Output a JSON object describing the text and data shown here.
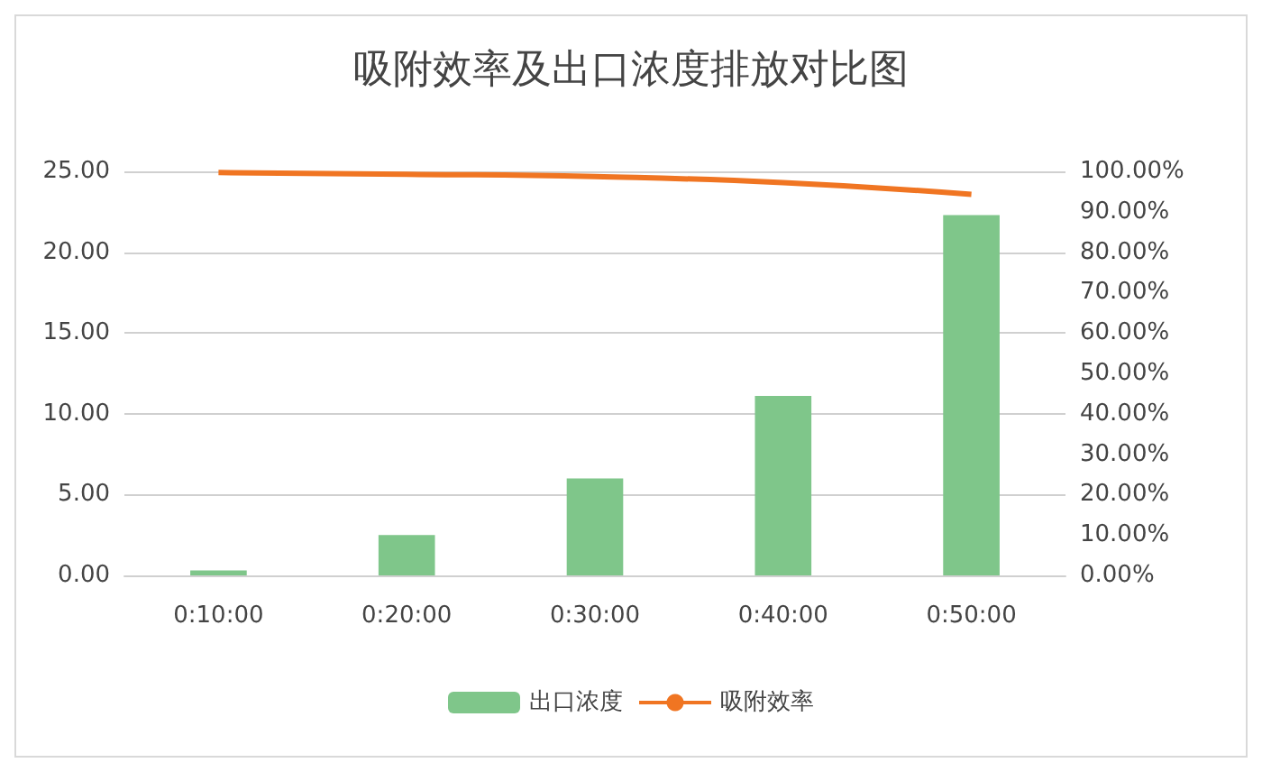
{
  "chart_data": {
    "type": "bar",
    "title": "吸附效率及出口浓度排放对比图",
    "categories": [
      "0:10:00",
      "0:20:00",
      "0:30:00",
      "0:40:00",
      "0:50:00"
    ],
    "series": [
      {
        "name": "出口浓度",
        "color": "#7fc68a",
        "values": [
          0.3,
          2.5,
          6.0,
          11.1,
          22.3
        ]
      },
      {
        "name": "吸附效率",
        "type": "line",
        "axis": "y2",
        "color": "#f07522",
        "values": [
          99.7,
          99.3,
          98.7,
          97.2,
          94.3
        ]
      }
    ],
    "ylim": [
      0,
      25
    ],
    "yticks": [
      {
        "value": 0,
        "label": "0.00"
      },
      {
        "value": 5,
        "label": "5.00"
      },
      {
        "value": 10,
        "label": "10.00"
      },
      {
        "value": 15,
        "label": "15.00"
      },
      {
        "value": 20,
        "label": "20.00"
      },
      {
        "value": 25,
        "label": "25.00"
      }
    ],
    "y2lim": [
      0,
      100
    ],
    "y2ticks": [
      {
        "value": 0,
        "label": "0.00%"
      },
      {
        "value": 10,
        "label": "10.00%"
      },
      {
        "value": 20,
        "label": "20.00%"
      },
      {
        "value": 30,
        "label": "30.00%"
      },
      {
        "value": 40,
        "label": "40.00%"
      },
      {
        "value": 50,
        "label": "50.00%"
      },
      {
        "value": 60,
        "label": "60.00%"
      },
      {
        "value": 70,
        "label": "70.00%"
      },
      {
        "value": 80,
        "label": "80.00%"
      },
      {
        "value": 90,
        "label": "90.00%"
      },
      {
        "value": 100,
        "label": "100.00%"
      }
    ],
    "grid": "y",
    "legend": "bottom",
    "marker": "none"
  }
}
